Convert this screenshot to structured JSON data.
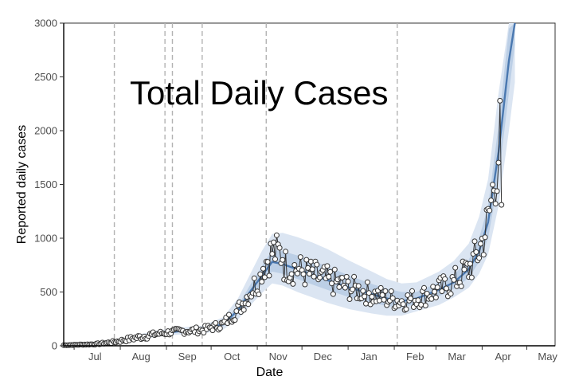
{
  "chart_data": {
    "type": "line",
    "title": "Total Daily Cases",
    "xlabel": "Date",
    "ylabel": "Reported daily cases",
    "ylim": [
      0,
      3000
    ],
    "yticks": [
      0,
      500,
      1000,
      1500,
      2000,
      2500,
      3000
    ],
    "xticks": [
      {
        "label": "Jul",
        "day": 0
      },
      {
        "label": "Aug",
        "day": 31
      },
      {
        "label": "Sep",
        "day": 62
      },
      {
        "label": "Oct",
        "day": 92
      },
      {
        "label": "Nov",
        "day": 123
      },
      {
        "label": "Dec",
        "day": 153
      },
      {
        "label": "Jan",
        "day": 184
      },
      {
        "label": "Feb",
        "day": 215
      },
      {
        "label": "Mar",
        "day": 243
      },
      {
        "label": "Apr",
        "day": 274
      },
      {
        "label": "May",
        "day": 304
      }
    ],
    "vlines_day": [
      27,
      61,
      66,
      86,
      129,
      217
    ],
    "colors": {
      "fit_line": "#4a78b0",
      "ribbon_outer": "#dbe5f2",
      "ribbon_inner": "#bccfe6",
      "points_fill": "#ffffff",
      "points_stroke": "#333333",
      "vline": "#b3b3b3"
    },
    "fit": {
      "day": [
        -7,
        14,
        27,
        40,
        55,
        70,
        86,
        100,
        110,
        118,
        126,
        133,
        140,
        150,
        160,
        170,
        185,
        200,
        210,
        220,
        230,
        245,
        255,
        265,
        272,
        278,
        285,
        292,
        296
      ],
      "mid": [
        5,
        15,
        35,
        70,
        110,
        135,
        145,
        200,
        330,
        500,
        650,
        780,
        760,
        710,
        660,
        610,
        540,
        480,
        440,
        415,
        440,
        520,
        590,
        710,
        880,
        1150,
        1800,
        2650,
        3000
      ],
      "lo50": [
        3,
        12,
        30,
        60,
        98,
        122,
        130,
        180,
        295,
        440,
        580,
        690,
        670,
        620,
        570,
        520,
        450,
        400,
        370,
        360,
        390,
        460,
        530,
        630,
        780,
        1000,
        1550,
        2350,
        2800
      ],
      "hi50": [
        8,
        18,
        40,
        80,
        122,
        148,
        160,
        225,
        370,
        560,
        740,
        890,
        880,
        840,
        790,
        740,
        650,
        575,
        530,
        500,
        500,
        590,
        660,
        800,
        1000,
        1300,
        2050,
        2950,
        3000
      ],
      "lo95": [
        1,
        8,
        22,
        48,
        82,
        104,
        112,
        150,
        245,
        370,
        490,
        580,
        560,
        500,
        450,
        400,
        340,
        300,
        280,
        280,
        320,
        380,
        450,
        540,
        670,
        850,
        1300,
        2000,
        2450
      ],
      "hi95": [
        12,
        24,
        50,
        95,
        140,
        170,
        185,
        265,
        440,
        660,
        880,
        1040,
        1050,
        1010,
        960,
        900,
        790,
        690,
        620,
        580,
        590,
        690,
        790,
        950,
        1200,
        1550,
        2350,
        3000,
        3000
      ]
    }
  }
}
